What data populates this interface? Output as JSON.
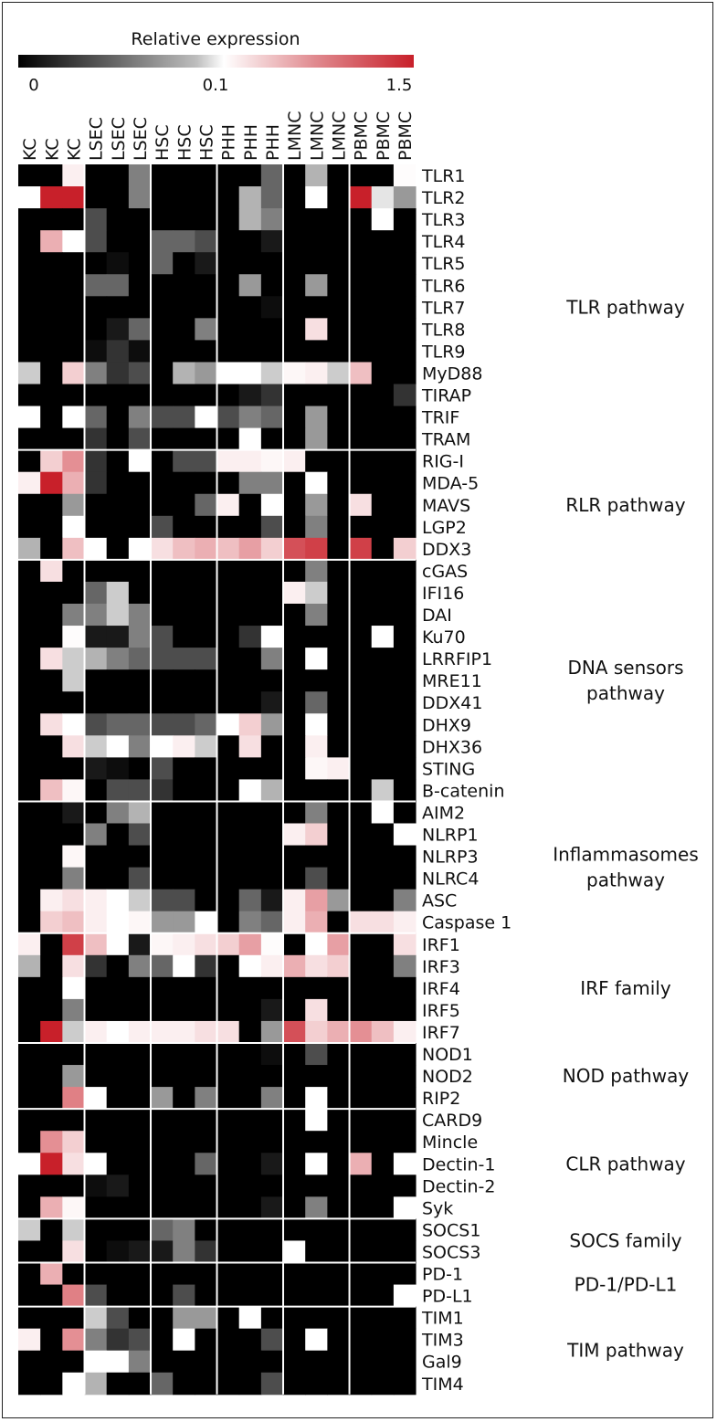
{
  "chart_data": {
    "type": "heatmap",
    "colorbar": {
      "title": "Relative expression",
      "tick_labels": [
        "0",
        "0.1",
        "1.5"
      ],
      "tick_values": [
        0,
        0.1,
        1.5
      ],
      "colors": [
        "#000000",
        "#ffffff",
        "#c8202a"
      ]
    },
    "columns": [
      "KC",
      "KC",
      "KC",
      "LSEC",
      "LSEC",
      "LSEC",
      "HSC",
      "HSC",
      "HSC",
      "PHH",
      "PHH",
      "PHH",
      "LMNC",
      "LMNC",
      "LMNC",
      "PBMC",
      "PBMC",
      "PBMC"
    ],
    "column_groups": [
      "KC",
      "LSEC",
      "HSC",
      "PHH",
      "LMNC",
      "PBMC"
    ],
    "rows": [
      "TLR1",
      "TLR2",
      "TLR3",
      "TLR4",
      "TLR5",
      "TLR6",
      "TLR7",
      "TLR8",
      "TLR9",
      "MyD88",
      "TIRAP",
      "TRIF",
      "TRAM",
      "RIG-I",
      "MDA-5",
      "MAVS",
      "LGP2",
      "DDX3",
      "cGAS",
      "IFI16",
      "DAI",
      "Ku70",
      "LRRFIP1",
      "MRE11",
      "DDX41",
      "DHX9",
      "DHX36",
      "STING",
      "B-catenin",
      "AIM2",
      "NLRP1",
      "NLRP3",
      "NLRC4",
      "ASC",
      "Caspase 1",
      "IRF1",
      "IRF3",
      "IRF4",
      "IRF5",
      "IRF7",
      "NOD1",
      "NOD2",
      "RIP2",
      "CARD9",
      "Mincle",
      "Dectin-1",
      "Dectin-2",
      "Syk",
      "SOCS1",
      "SOCS3",
      "PD-1",
      "PD-L1",
      "TIM1",
      "TIM3",
      "Gal9",
      "TIM4"
    ],
    "pathways": [
      {
        "lines": [
          "TLR pathway"
        ],
        "start": 0,
        "end": 12
      },
      {
        "lines": [
          "RLR pathway"
        ],
        "start": 13,
        "end": 17
      },
      {
        "lines": [
          "DNA sensors",
          "pathway"
        ],
        "start": 18,
        "end": 28
      },
      {
        "lines": [
          "Inflammasomes",
          "pathway"
        ],
        "start": 29,
        "end": 34
      },
      {
        "lines": [
          "IRF family"
        ],
        "start": 35,
        "end": 39
      },
      {
        "lines": [
          "NOD pathway"
        ],
        "start": 40,
        "end": 42
      },
      {
        "lines": [
          "CLR pathway"
        ],
        "start": 43,
        "end": 47
      },
      {
        "lines": [
          "SOCS family"
        ],
        "start": 48,
        "end": 49
      },
      {
        "lines": [
          "PD-1/PD-L1"
        ],
        "start": 50,
        "end": 51
      },
      {
        "lines": [
          "TIM pathway"
        ],
        "start": 52,
        "end": 55
      }
    ],
    "values": [
      [
        0,
        0,
        0.2,
        0,
        0,
        0.05,
        0,
        0,
        0,
        0,
        0,
        0.04,
        0,
        0.07,
        0,
        0,
        0,
        0.12
      ],
      [
        0.1,
        1.5,
        1.5,
        0,
        0,
        0.05,
        0,
        0,
        0,
        0,
        0.07,
        0.04,
        0,
        0.1,
        0,
        1.5,
        0.09,
        0.06
      ],
      [
        0,
        0,
        0,
        0.03,
        0,
        0,
        0,
        0,
        0,
        0,
        0.07,
        0.05,
        0,
        0,
        0,
        0,
        0.1,
        0
      ],
      [
        0,
        0.6,
        0.1,
        0.03,
        0,
        0,
        0.04,
        0.04,
        0.03,
        0,
        0,
        0.01,
        0,
        0,
        0,
        0,
        0,
        0
      ],
      [
        0,
        0,
        0,
        0,
        0.005,
        0,
        0.04,
        0,
        0.01,
        0,
        0,
        0,
        0,
        0,
        0,
        0,
        0,
        0
      ],
      [
        0,
        0,
        0,
        0.04,
        0.04,
        0,
        0,
        0,
        0,
        0,
        0.06,
        0,
        0,
        0.06,
        0,
        0,
        0,
        0
      ],
      [
        0,
        0,
        0,
        0,
        0,
        0,
        0,
        0,
        0,
        0,
        0,
        0.005,
        0,
        0,
        0,
        0,
        0,
        0
      ],
      [
        0,
        0,
        0,
        0,
        0.01,
        0.04,
        0,
        0,
        0.05,
        0,
        0,
        0,
        0,
        0.3,
        0,
        0,
        0,
        0
      ],
      [
        0,
        0,
        0,
        0.005,
        0.02,
        0.005,
        0,
        0,
        0,
        0,
        0,
        0,
        0,
        0,
        0,
        0,
        0,
        0
      ],
      [
        0.08,
        0,
        0.4,
        0.05,
        0.02,
        0.03,
        0,
        0.07,
        0.06,
        0.1,
        0.1,
        0.08,
        0.15,
        0.2,
        0.08,
        0.5,
        0,
        0
      ],
      [
        0,
        0,
        0,
        0,
        0,
        0,
        0,
        0,
        0,
        0,
        0.01,
        0.02,
        0,
        0,
        0,
        0,
        0,
        0.02
      ],
      [
        0.1,
        0,
        0.1,
        0.04,
        0,
        0.05,
        0.03,
        0.03,
        0.1,
        0.03,
        0.05,
        0.04,
        0,
        0.06,
        0,
        0,
        0,
        0
      ],
      [
        0,
        0,
        0,
        0.02,
        0,
        0.03,
        0,
        0,
        0,
        0,
        0.1,
        0,
        0,
        0.06,
        0,
        0,
        0,
        0
      ],
      [
        0,
        0.4,
        0.8,
        0.02,
        0,
        0.1,
        0,
        0.03,
        0.03,
        0.2,
        0.2,
        0.15,
        0.2,
        0,
        0,
        0,
        0,
        0
      ],
      [
        0.2,
        1.5,
        0.6,
        0.02,
        0,
        0,
        0,
        0,
        0,
        0,
        0.05,
        0.05,
        0,
        0.1,
        0,
        0,
        0,
        0
      ],
      [
        0,
        0,
        0.06,
        0,
        0,
        0,
        0,
        0,
        0.04,
        0.2,
        0,
        0.1,
        0,
        0.06,
        0,
        0.3,
        0,
        0
      ],
      [
        0,
        0,
        0.1,
        0,
        0,
        0,
        0.03,
        0,
        0,
        0,
        0,
        0.03,
        0,
        0.05,
        0,
        0,
        0,
        0
      ],
      [
        0.07,
        0,
        0.5,
        0.1,
        0,
        0.1,
        0.3,
        0.5,
        0.6,
        0.5,
        0.7,
        0.4,
        1.2,
        1.3,
        0,
        1.3,
        0,
        0.4
      ],
      [
        0,
        0.3,
        0,
        0,
        0,
        0,
        0,
        0,
        0,
        0,
        0,
        0,
        0,
        0.05,
        0,
        0,
        0,
        0
      ],
      [
        0,
        0,
        0,
        0.04,
        0.08,
        0,
        0,
        0,
        0,
        0,
        0,
        0,
        0.2,
        0.08,
        0,
        0,
        0,
        0
      ],
      [
        0,
        0,
        0.05,
        0.05,
        0.08,
        0.05,
        0,
        0,
        0,
        0,
        0,
        0,
        0,
        0.05,
        0,
        0,
        0,
        0
      ],
      [
        0,
        0,
        0.12,
        0.01,
        0.01,
        0.05,
        0.03,
        0,
        0,
        0,
        0.02,
        0.1,
        0,
        0,
        0,
        0,
        0.1,
        0
      ],
      [
        0,
        0.3,
        0.08,
        0.07,
        0.05,
        0.04,
        0.03,
        0.03,
        0.03,
        0,
        0,
        0.05,
        0,
        0.1,
        0,
        0,
        0,
        0
      ],
      [
        0,
        0,
        0.08,
        0,
        0,
        0,
        0,
        0,
        0,
        0,
        0,
        0,
        0,
        0,
        0,
        0,
        0,
        0
      ],
      [
        0,
        0,
        0,
        0,
        0,
        0,
        0,
        0,
        0,
        0,
        0,
        0.01,
        0,
        0.04,
        0,
        0,
        0,
        0
      ],
      [
        0,
        0.3,
        0.1,
        0.03,
        0.04,
        0.04,
        0.03,
        0.03,
        0.04,
        0.1,
        0.4,
        0.06,
        0,
        0.1,
        0,
        0,
        0,
        0
      ],
      [
        0,
        0,
        0.3,
        0.08,
        0.1,
        0.05,
        0.1,
        0.2,
        0.08,
        0,
        0.3,
        0,
        0,
        0.2,
        0,
        0,
        0,
        0
      ],
      [
        0,
        0,
        0,
        0.01,
        0.005,
        0,
        0.03,
        0,
        0,
        0,
        0,
        0,
        0,
        0.15,
        0.2,
        0,
        0,
        0
      ],
      [
        0,
        0.5,
        0.15,
        0,
        0.03,
        0.03,
        0.02,
        0,
        0,
        0,
        0.1,
        0.07,
        0,
        0,
        0,
        0,
        0.08,
        0
      ],
      [
        0,
        0,
        0.01,
        0,
        0.05,
        0.07,
        0,
        0,
        0,
        0,
        0,
        0,
        0,
        0.05,
        0,
        0,
        0.1,
        0
      ],
      [
        0,
        0,
        0,
        0.05,
        0,
        0.03,
        0,
        0,
        0,
        0,
        0,
        0,
        0.2,
        0.4,
        0,
        0,
        0,
        0.1
      ],
      [
        0,
        0,
        0.15,
        0,
        0,
        0,
        0,
        0,
        0,
        0,
        0,
        0,
        0,
        0,
        0,
        0,
        0,
        0
      ],
      [
        0,
        0,
        0.05,
        0,
        0,
        0.03,
        0,
        0,
        0,
        0,
        0,
        0,
        0,
        0.03,
        0,
        0,
        0,
        0
      ],
      [
        0,
        0.2,
        0.3,
        0.2,
        0.1,
        0.08,
        0.03,
        0.03,
        0,
        0,
        0.04,
        0.01,
        0.2,
        0.7,
        0.06,
        0,
        0,
        0.05
      ],
      [
        0,
        0.4,
        0.5,
        0.2,
        0.1,
        0.15,
        0.06,
        0.06,
        0.1,
        0,
        0.05,
        0.04,
        0.2,
        0.6,
        0,
        0.3,
        0.3,
        0.2
      ],
      [
        0.2,
        0,
        1.3,
        0.5,
        0.1,
        0.01,
        0.15,
        0.2,
        0.3,
        0.4,
        0.7,
        0.12,
        0,
        0.1,
        0.7,
        0,
        0,
        0.3
      ],
      [
        0.07,
        0,
        0.3,
        0.02,
        0,
        0.05,
        0.04,
        0.1,
        0.02,
        0,
        0.1,
        0.2,
        0.6,
        0.3,
        0.4,
        0,
        0,
        0.05
      ],
      [
        0,
        0,
        0.1,
        0,
        0,
        0,
        0,
        0,
        0,
        0,
        0,
        0,
        0,
        0,
        0,
        0,
        0,
        0
      ],
      [
        0,
        0,
        0.05,
        0,
        0,
        0,
        0,
        0,
        0,
        0,
        0,
        0.01,
        0,
        0.3,
        0,
        0,
        0,
        0
      ],
      [
        0,
        1.5,
        0.08,
        0.2,
        0.1,
        0.2,
        0.2,
        0.2,
        0.3,
        0.3,
        0,
        0.06,
        1.2,
        0.4,
        0.6,
        0.8,
        0.5,
        0.2
      ],
      [
        0,
        0,
        0,
        0,
        0,
        0,
        0,
        0,
        0,
        0,
        0,
        0.005,
        0,
        0.03,
        0,
        0,
        0,
        0
      ],
      [
        0,
        0,
        0.06,
        0,
        0,
        0,
        0,
        0,
        0,
        0,
        0,
        0,
        0,
        0,
        0,
        0,
        0,
        0
      ],
      [
        0,
        0,
        0.9,
        0.1,
        0,
        0,
        0.06,
        0,
        0.05,
        0,
        0,
        0.05,
        0,
        0.1,
        0,
        0,
        0,
        0
      ],
      [
        0,
        0,
        0,
        0,
        0,
        0,
        0,
        0,
        0,
        0,
        0,
        0,
        0,
        0.1,
        0,
        0,
        0,
        0
      ],
      [
        0,
        0.8,
        0.4,
        0,
        0,
        0,
        0,
        0,
        0,
        0,
        0,
        0,
        0,
        0,
        0,
        0,
        0,
        0
      ],
      [
        0.1,
        1.5,
        0.3,
        0.1,
        0,
        0,
        0,
        0,
        0.04,
        0,
        0,
        0.01,
        0,
        0.1,
        0,
        0.6,
        0,
        0.1
      ],
      [
        0,
        0,
        0,
        0.005,
        0.01,
        0,
        0,
        0,
        0,
        0,
        0,
        0,
        0,
        0,
        0,
        0,
        0,
        0
      ],
      [
        0,
        0.6,
        0.15,
        0,
        0,
        0,
        0,
        0,
        0,
        0,
        0,
        0.01,
        0,
        0.05,
        0,
        0,
        0,
        0.1
      ],
      [
        0.08,
        0,
        0.08,
        0,
        0,
        0,
        0.04,
        0.05,
        0,
        0,
        0,
        0,
        0,
        0,
        0,
        0,
        0,
        0
      ],
      [
        0,
        0,
        0.3,
        0,
        0.005,
        0.01,
        0.01,
        0.05,
        0.02,
        0,
        0,
        0,
        0.1,
        0,
        0,
        0,
        0,
        0
      ],
      [
        0,
        0.6,
        0,
        0,
        0,
        0,
        0,
        0,
        0,
        0,
        0,
        0,
        0,
        0,
        0,
        0,
        0,
        0
      ],
      [
        0,
        0,
        0.9,
        0.03,
        0,
        0,
        0,
        0.03,
        0,
        0,
        0,
        0,
        0,
        0,
        0,
        0,
        0,
        0.1
      ],
      [
        0,
        0,
        0,
        0.08,
        0.03,
        0,
        0,
        0.06,
        0.06,
        0,
        0.1,
        0,
        0,
        0,
        0,
        0,
        0,
        0
      ],
      [
        0.2,
        0,
        0.8,
        0.05,
        0.02,
        0.03,
        0,
        0.1,
        0,
        0,
        0,
        0.03,
        0,
        0.1,
        0,
        0,
        0,
        0
      ],
      [
        0,
        0,
        0,
        0.1,
        0.1,
        0.05,
        0,
        0,
        0,
        0,
        0,
        0,
        0,
        0,
        0,
        0,
        0,
        0
      ],
      [
        0,
        0,
        0.1,
        0.07,
        0,
        0,
        0.04,
        0,
        0,
        0,
        0,
        0.03,
        0,
        0,
        0,
        0,
        0,
        0
      ]
    ]
  }
}
